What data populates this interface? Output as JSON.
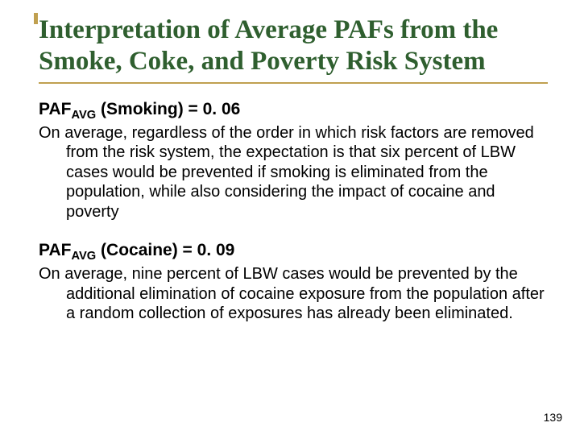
{
  "colors": {
    "accent": "#c0a050",
    "title": "#2f5f2f",
    "text": "#000000",
    "background": "#ffffff"
  },
  "typography": {
    "title_font": "Times New Roman",
    "body_font": "Arial",
    "title_size_pt": 33,
    "heading_size_pt": 21,
    "body_size_pt": 20,
    "page_num_size_pt": 14
  },
  "title": "Interpretation of Average PAFs from the Smoke, Coke, and Poverty Risk System",
  "sections": [
    {
      "heading_prefix": "PAF",
      "heading_sub": "AVG",
      "heading_suffix": " (Smoking) = 0. 06",
      "body": "On average, regardless of the order in which risk factors are removed from the risk system, the expectation is that six percent of LBW cases would be prevented if smoking is eliminated from the population, while also considering the impact of cocaine and poverty"
    },
    {
      "heading_prefix": "PAF",
      "heading_sub": "AVG",
      "heading_suffix": " (Cocaine) = 0. 09",
      "body": "On average, nine percent of LBW cases would be prevented by the additional elimination of cocaine exposure from the population after a random collection of exposures has already been eliminated."
    }
  ],
  "page_number": "139"
}
